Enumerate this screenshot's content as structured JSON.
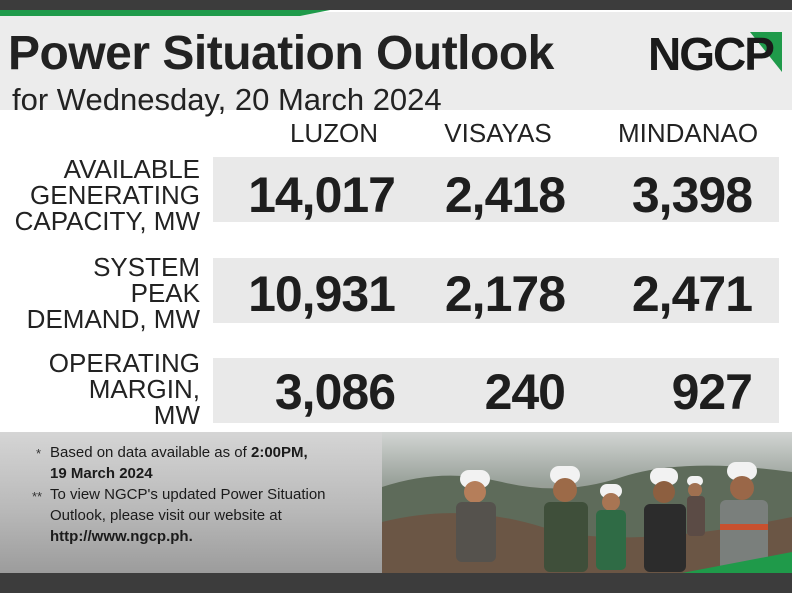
{
  "header": {
    "title": "Power Situation Outlook",
    "subtitle": "for Wednesday, 20 March 2024",
    "logo_text": "NGCP"
  },
  "columns": [
    "LUZON",
    "VISAYAS",
    "MINDANAO"
  ],
  "rows": [
    {
      "label_lines": [
        "AVAILABLE",
        "GENERATING",
        "CAPACITY, MW"
      ],
      "values": [
        "14,017",
        "2,418",
        "3,398"
      ]
    },
    {
      "label_lines": [
        "SYSTEM",
        "PEAK",
        "DEMAND, MW"
      ],
      "values": [
        "10,931",
        "2,178",
        "2,471"
      ]
    },
    {
      "label_lines": [
        "OPERATING",
        "MARGIN,",
        "MW"
      ],
      "values": [
        "3,086",
        "240",
        "927"
      ]
    }
  ],
  "notes": {
    "note1_marker": "*",
    "note1_line1_prefix": "Based on data available as of ",
    "note1_line1_bold": "2:00PM,",
    "note1_line2_bold": "19 March 2024",
    "note2_marker": "**",
    "note2_line1": "To view NGCP's updated Power Situation",
    "note2_line2": "Outlook, please visit our website at",
    "note2_line3_bold": "http://www.ngcp.ph."
  },
  "colors": {
    "brand_green": "#1f9a4a",
    "dark_bar": "#3c3c3c",
    "band": "#e9e9e9"
  }
}
